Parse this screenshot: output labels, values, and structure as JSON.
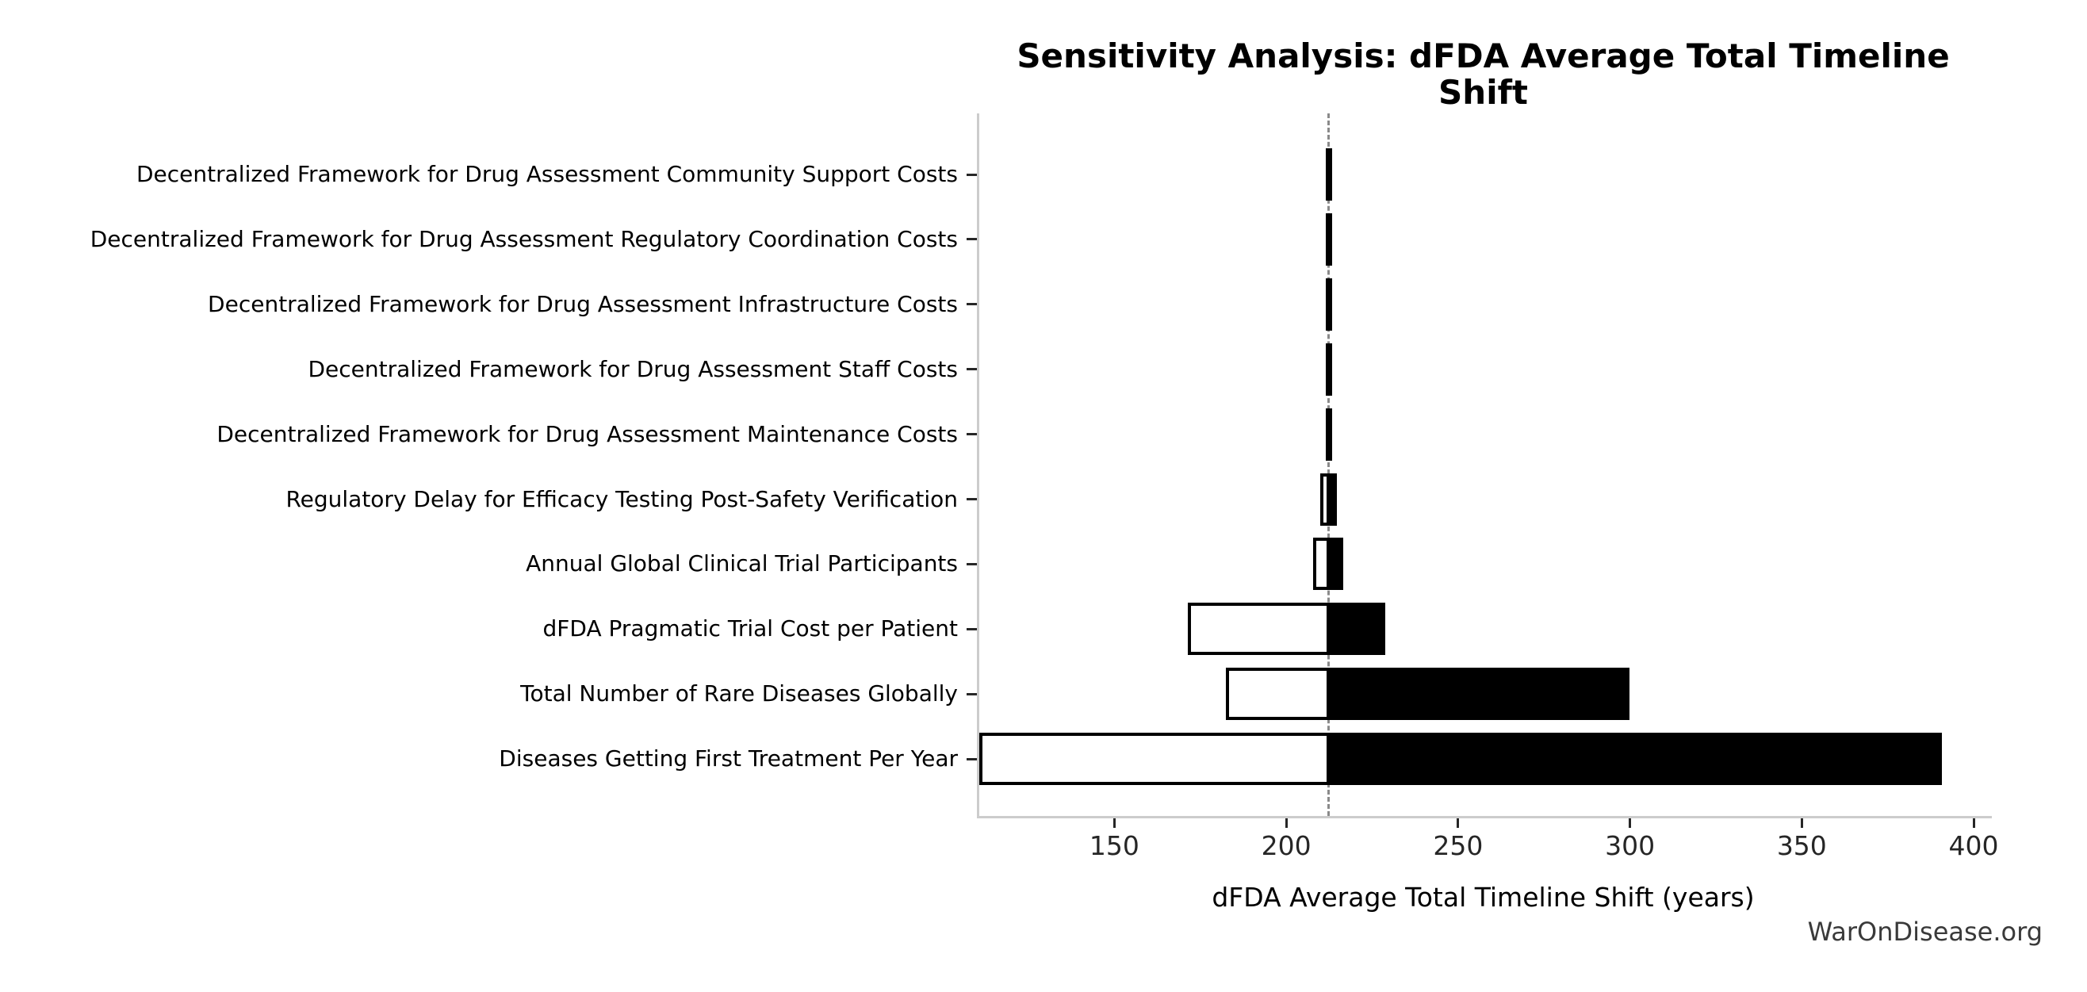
{
  "watermark": "WarOnDisease.org",
  "chart_data": {
    "type": "bar",
    "variant": "tornado-sensitivity",
    "orientation": "horizontal",
    "title": "Sensitivity Analysis: dFDA Average Total Timeline Shift",
    "xlabel": "dFDA Average Total Timeline Shift (years)",
    "ylabel": "",
    "xlim": [
      110.0,
      404.6
    ],
    "xticks": [
      150,
      200,
      250,
      300,
      350,
      400
    ],
    "baseline": 212.3,
    "grid": false,
    "legend": null,
    "categories": [
      "Decentralized Framework for Drug Assessment Community Support Costs",
      "Decentralized Framework for Drug Assessment Regulatory Coordination Costs",
      "Decentralized Framework for Drug Assessment Infrastructure Costs",
      "Decentralized Framework for Drug Assessment Staff Costs",
      "Decentralized Framework for Drug Assessment Maintenance Costs",
      "Regulatory Delay for Efficacy Testing Post-Safety Verification",
      "Annual Global Clinical Trial Participants",
      "dFDA Pragmatic Trial Cost per Patient",
      "Total Number of Rare Diseases Globally",
      "Diseases Getting First Treatment Per Year"
    ],
    "series": [
      {
        "name": "low_result",
        "style": "white-fill-black-edge",
        "values": [
          211.4,
          211.4,
          211.4,
          211.4,
          211.4,
          210.0,
          207.8,
          171.3,
          182.5,
          110.7
        ]
      },
      {
        "name": "high_result",
        "style": "black-fill",
        "values": [
          213.3,
          213.3,
          213.3,
          213.3,
          213.3,
          214.7,
          216.5,
          228.8,
          299.8,
          390.8
        ]
      }
    ],
    "colors": {
      "high_bar": "#000000",
      "low_bar_fill": "#ffffff",
      "bar_edge": "#000000",
      "baseline_line": "#8a8a8a",
      "spine": "#cccccc",
      "tick": "#262626",
      "text": "#000000",
      "watermark": "#3a3a3a"
    }
  }
}
